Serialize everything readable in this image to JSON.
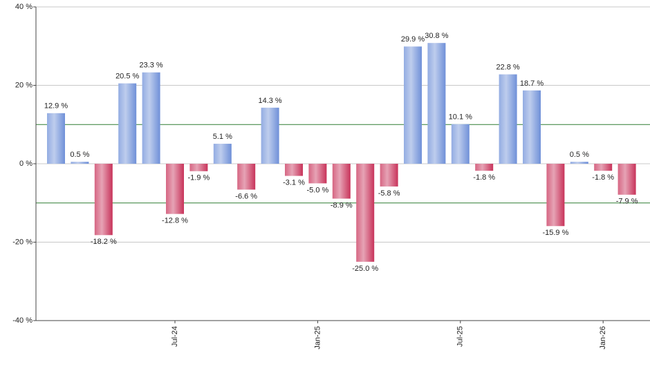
{
  "chart_data": {
    "type": "bar",
    "categories": [
      null,
      null,
      null,
      null,
      null,
      "Jul-24",
      null,
      null,
      null,
      null,
      null,
      "Jan-25",
      null,
      null,
      null,
      null,
      null,
      "Jul-25",
      null,
      null,
      null,
      null,
      null,
      "Jan-26",
      null
    ],
    "values": [
      12.9,
      0.5,
      -18.2,
      20.5,
      23.3,
      -12.8,
      -1.9,
      5.1,
      -6.6,
      14.3,
      -3.1,
      -5.0,
      -8.9,
      -25.0,
      -5.8,
      29.9,
      30.8,
      10.1,
      -1.8,
      22.8,
      18.7,
      -15.9,
      0.5,
      -1.8,
      -7.9
    ],
    "value_labels": [
      "12.9 %",
      "0.5 %",
      "-18.2 %",
      "20.5 %",
      "23.3 %",
      "-12.8 %",
      "-1.9 %",
      "5.1 %",
      "-6.6 %",
      "14.3 %",
      "-3.1 %",
      "-5.0 %",
      "-8.9 %",
      "-25.0 %",
      "-5.8 %",
      "29.9 %",
      "30.8 %",
      "10.1 %",
      "-1.8 %",
      "22.8 %",
      "18.7 %",
      "-15.9 %",
      "0.5 %",
      "-1.8 %",
      "-7.9 %"
    ],
    "positive_color": "#6f90d8",
    "negative_color": "#c8335a",
    "ylim": [
      -40,
      40
    ],
    "yticks": [
      {
        "value": -40,
        "label": "-40 %"
      },
      {
        "value": -20,
        "label": "-20 %"
      },
      {
        "value": 0,
        "label": "0 %"
      },
      {
        "value": 20,
        "label": "20 %"
      },
      {
        "value": 40,
        "label": "40 %"
      }
    ],
    "reference_lines": [
      10,
      -10
    ],
    "reference_color": "#2e7d32",
    "grid": true
  }
}
